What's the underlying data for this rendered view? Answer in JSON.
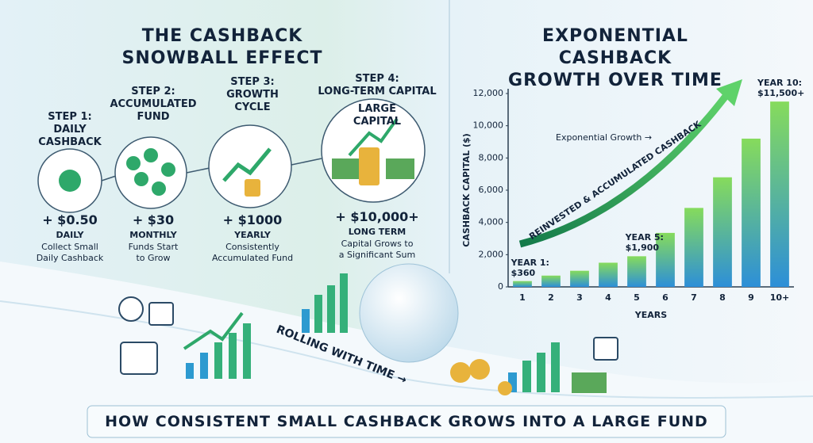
{
  "left_panel": {
    "title": "THE CASHBACK SNOWBALL EFFECT",
    "steps": [
      {
        "heading": "STEP 1:\nDAILY\nCASHBACK",
        "amount": "+ $0.50",
        "period": "DAILY",
        "description": "Collect Small\nDaily Cashback"
      },
      {
        "heading": "STEP 2:\nACCUMULATED\nFUND",
        "amount": "+ $30",
        "period": "MONTHLY",
        "description": "Funds Start\nto Grow"
      },
      {
        "heading": "STEP 3:\nGROWTH\nCYCLE",
        "amount": "+ $1000",
        "period": "YEARLY",
        "description": "Consistently\nAccumulated Fund"
      },
      {
        "heading": "STEP 4:\nLONG-TERM CAPITAL",
        "badge": "LARGE\nCAPITAL",
        "amount": "+ $10,000+",
        "period": "LONG TERM",
        "description": "Capital Grows to\na Significant Sum"
      }
    ]
  },
  "illustration": {
    "caption": "ROLLING WITH TIME →"
  },
  "footer": {
    "banner": "HOW CONSISTENT SMALL CASHBACK GROWS INTO A LARGE FUND"
  },
  "chart_data": {
    "type": "bar",
    "title": "EXPONENTIAL CASHBACK\nGROWTH OVER TIME",
    "x_label": "YEARS",
    "y_label": "CASHBACK CAPITAL ($)",
    "categories": [
      "1",
      "2",
      "3",
      "4",
      "5",
      "6",
      "7",
      "8",
      "9",
      "10+"
    ],
    "values": [
      360,
      700,
      1000,
      1500,
      1900,
      3350,
      4900,
      6800,
      9200,
      11500
    ],
    "value_labels": [
      "YEAR 1:\n$360",
      null,
      null,
      null,
      "YEAR 5:\n$1,900",
      null,
      null,
      null,
      null,
      "YEAR 10:\n$11,500+"
    ],
    "colors": [
      "#86db5c",
      "#2d8fd8"
    ],
    "ylim": [
      0,
      12000
    ],
    "yticks": [
      0,
      {
        "value": 2000,
        "label": "2,000"
      },
      {
        "value": 4000,
        "label": "4,000"
      },
      {
        "value": 6000,
        "label": "6,000"
      },
      {
        "value": 8000,
        "label": "8,000"
      },
      {
        "value": 10000,
        "label": "10,000"
      },
      {
        "value": 12000,
        "label": "12,000"
      }
    ],
    "annotations": [
      "Exponential Growth →",
      "REINVESTED & ACCUMULATED CASHBACK"
    ]
  }
}
